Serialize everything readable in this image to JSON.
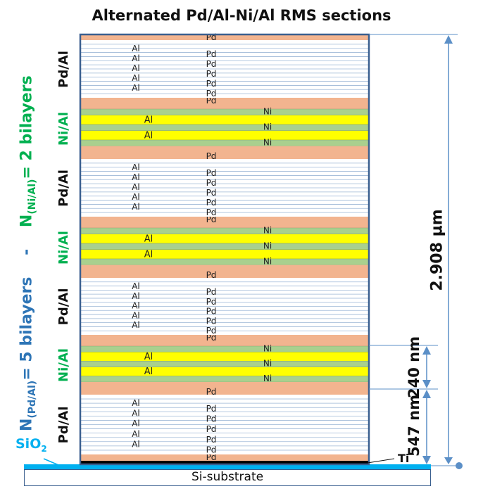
{
  "title": "Alternated Pd/Al-Ni/Al RMS sections",
  "left_label": {
    "pd_prefix": "N",
    "pd_sub": "(Pd/Al)",
    "pd_suffix": "= 5 bilayers",
    "separator": "-",
    "ni_prefix": "N",
    "ni_sub": "(Ni/Al)",
    "ni_suffix": "= 2 bilayers"
  },
  "labels": {
    "pd": "Pd",
    "al": "Al",
    "ni": "Ni",
    "pd_al_section": "Pd/Al",
    "ni_al_section": "Ni/Al",
    "ti": "Ti",
    "sio2_base": "SiO",
    "sio2_sub": "2",
    "substrate": "Si-substrate"
  },
  "dimensions": {
    "total": "2.908 µm",
    "ni_al_section": "240 nm",
    "pd_al_section": "547 nm"
  },
  "colors": {
    "pd": "#f2b48f",
    "al_yellow": "#ffff00",
    "ni": "#a9d08e",
    "al_white": "#ffffff",
    "frame": "#3a5f8f",
    "dimension": "#5b8fc7",
    "sio2": "#00b0f0",
    "green_text": "#00b050",
    "blue_text": "#2e75b6",
    "ti": "#000000"
  },
  "structure": [
    "pd_al",
    "ni_al",
    "pd_al",
    "ni_al",
    "pd_al",
    "ni_al",
    "pd_al"
  ]
}
